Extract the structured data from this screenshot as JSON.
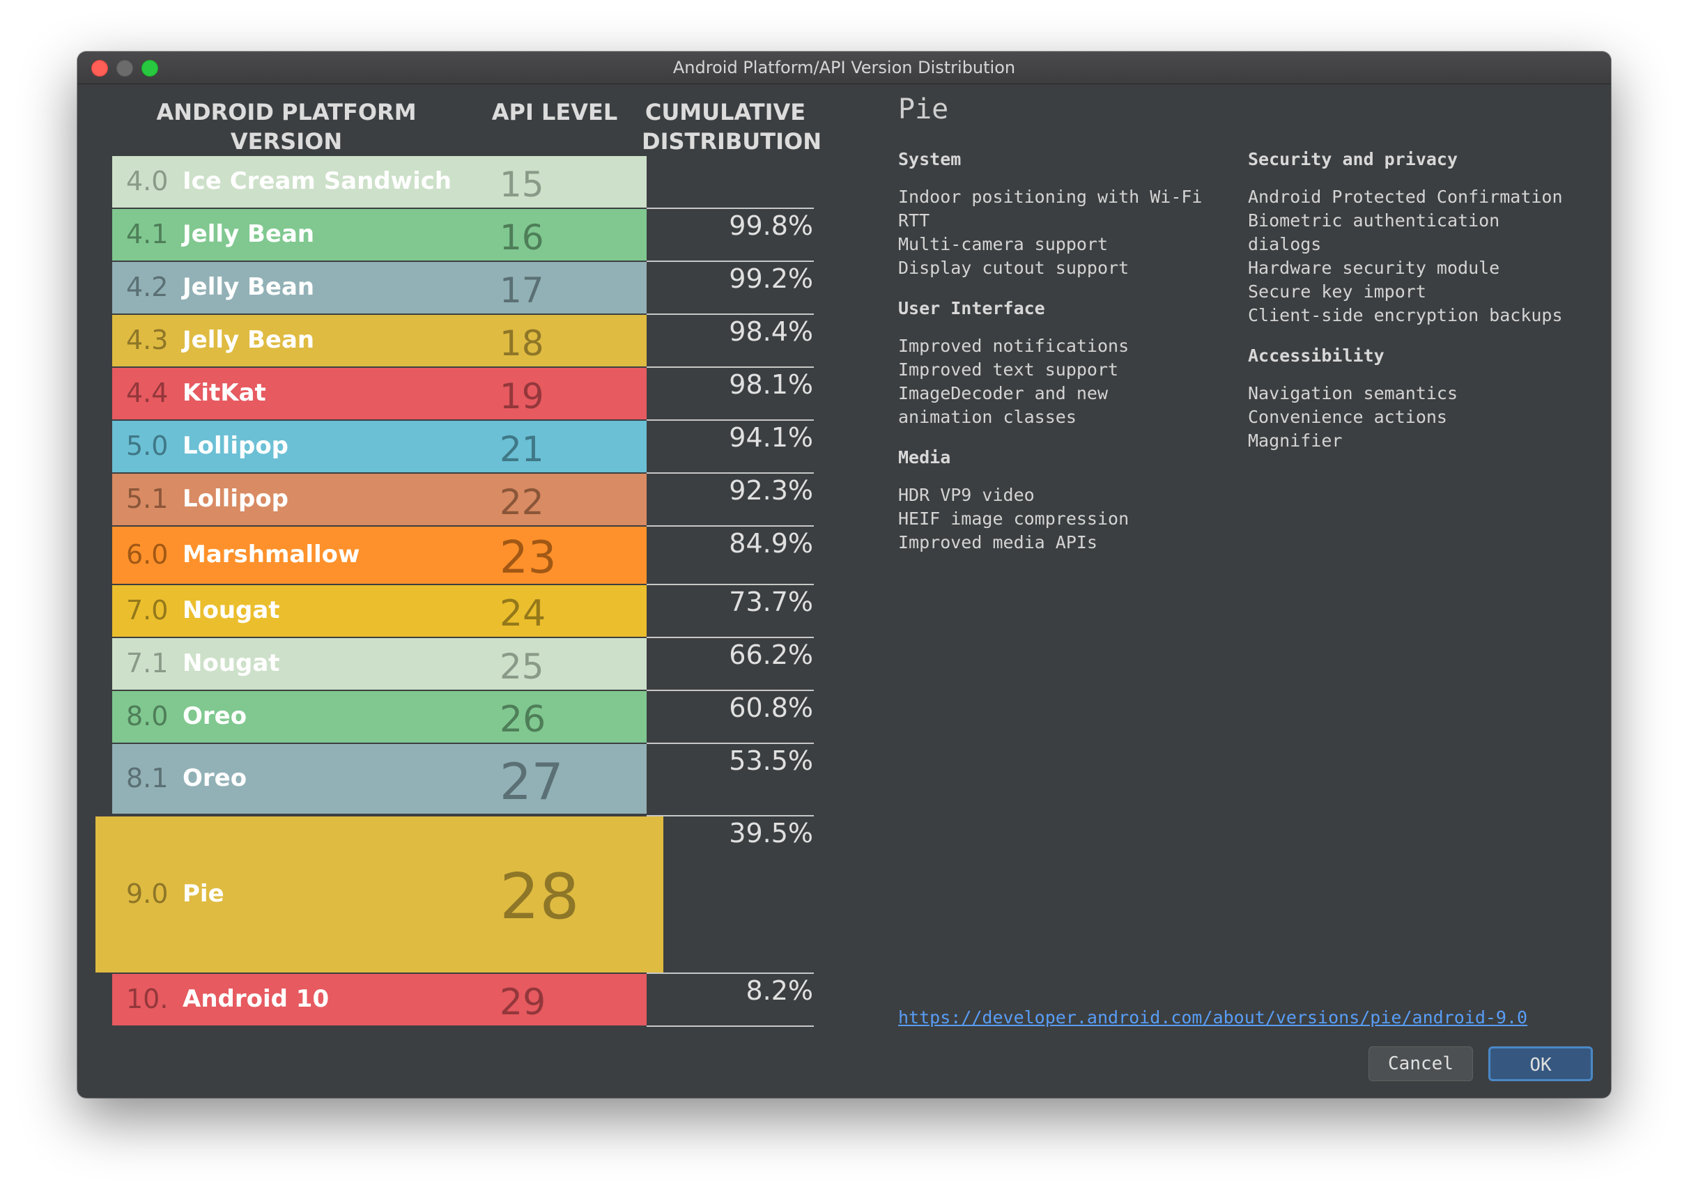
{
  "window": {
    "title": "Android Platform/API Version Distribution"
  },
  "header": {
    "version_line1": "ANDROID PLATFORM",
    "version_line2": "VERSION",
    "api": "API LEVEL",
    "cum_line1": "CUMULATIVE",
    "cum_line2": "DISTRIBUTION"
  },
  "rows": [
    {
      "version": "4.0",
      "name": "Ice Cream Sandwich",
      "api": "15",
      "cumulative": "",
      "color": "#cde0c9",
      "num_color": "#8a9a88",
      "name_color": "#ffffff",
      "api_color": "#8a9a88"
    },
    {
      "version": "4.1",
      "name": "Jelly Bean",
      "api": "16",
      "cumulative": "99.8%",
      "color": "#80c890",
      "num_color": "#4e7e58",
      "name_color": "#ffffff",
      "api_color": "#4e7e58"
    },
    {
      "version": "4.2",
      "name": "Jelly Bean",
      "api": "17",
      "cumulative": "99.2%",
      "color": "#92b1b6",
      "num_color": "#5b7074",
      "name_color": "#ffffff",
      "api_color": "#5b7074"
    },
    {
      "version": "4.3",
      "name": "Jelly Bean",
      "api": "18",
      "cumulative": "98.4%",
      "color": "#dfbb41",
      "num_color": "#8e7628",
      "name_color": "#ffffff",
      "api_color": "#8e7628"
    },
    {
      "version": "4.4",
      "name": "KitKat",
      "api": "19",
      "cumulative": "98.1%",
      "color": "#e65a60",
      "num_color": "#93373b",
      "name_color": "#ffffff",
      "api_color": "#93373b"
    },
    {
      "version": "5.0",
      "name": "Lollipop",
      "api": "21",
      "cumulative": "94.1%",
      "color": "#6bc0d5",
      "num_color": "#3f7887",
      "name_color": "#ffffff",
      "api_color": "#3f7887"
    },
    {
      "version": "5.1",
      "name": "Lollipop",
      "api": "22",
      "cumulative": "92.3%",
      "color": "#d98b63",
      "num_color": "#8a5639",
      "name_color": "#ffffff",
      "api_color": "#8a5639"
    },
    {
      "version": "6.0",
      "name": "Marshmallow",
      "api": "23",
      "cumulative": "84.9%",
      "color": "#fe912b",
      "num_color": "#a15815",
      "name_color": "#ffffff",
      "api_color": "#a15815"
    },
    {
      "version": "7.0",
      "name": "Nougat",
      "api": "24",
      "cumulative": "73.7%",
      "color": "#ebbe2d",
      "num_color": "#94781a",
      "name_color": "#ffffff",
      "api_color": "#94781a"
    },
    {
      "version": "7.1",
      "name": "Nougat",
      "api": "25",
      "cumulative": "66.2%",
      "color": "#cde0c9",
      "num_color": "#8a9a88",
      "name_color": "#ffffff",
      "api_color": "#8a9a88"
    },
    {
      "version": "8.0",
      "name": "Oreo",
      "api": "26",
      "cumulative": "60.8%",
      "color": "#80c890",
      "num_color": "#4e7e58",
      "name_color": "#ffffff",
      "api_color": "#4e7e58"
    },
    {
      "version": "8.1",
      "name": "Oreo",
      "api": "27",
      "cumulative": "53.5%",
      "color": "#92b1b6",
      "num_color": "#5b7074",
      "name_color": "#ffffff",
      "api_color": "#5b7074"
    },
    {
      "version": "9.0",
      "name": "Pie",
      "api": "28",
      "cumulative": "39.5%",
      "color": "#dfbb41",
      "num_color": "#8e7628",
      "name_color": "#ffffff",
      "api_color": "#8e7628",
      "selected": true
    },
    {
      "version": "10.",
      "name": "Android 10",
      "api": "29",
      "cumulative": "8.2%",
      "color": "#e65a60",
      "num_color": "#93373b",
      "name_color": "#ffffff",
      "api_color": "#93373b"
    }
  ],
  "details": {
    "title": "Pie",
    "sections_left": [
      {
        "heading": "System",
        "items": [
          "Indoor positioning with Wi-Fi",
          "RTT",
          "Multi-camera support",
          "Display cutout support"
        ]
      },
      {
        "heading": "User Interface",
        "items": [
          "Improved notifications",
          "Improved text support",
          "ImageDecoder and new",
          "animation classes"
        ]
      },
      {
        "heading": "Media",
        "items": [
          "HDR VP9 video",
          "HEIF image compression",
          "Improved media APIs"
        ]
      }
    ],
    "sections_right": [
      {
        "heading": "Security and privacy",
        "items": [
          "Android Protected Confirmation",
          "Biometric authentication",
          "dialogs",
          "Hardware security module",
          "Secure key import",
          "Client-side encryption backups"
        ]
      },
      {
        "heading": "Accessibility",
        "items": [
          "Navigation semantics",
          "Convenience actions",
          "Magnifier"
        ]
      }
    ],
    "link": "https://developer.android.com/about/versions/pie/android-9.0"
  },
  "buttons": {
    "cancel": "Cancel",
    "ok": "OK"
  }
}
